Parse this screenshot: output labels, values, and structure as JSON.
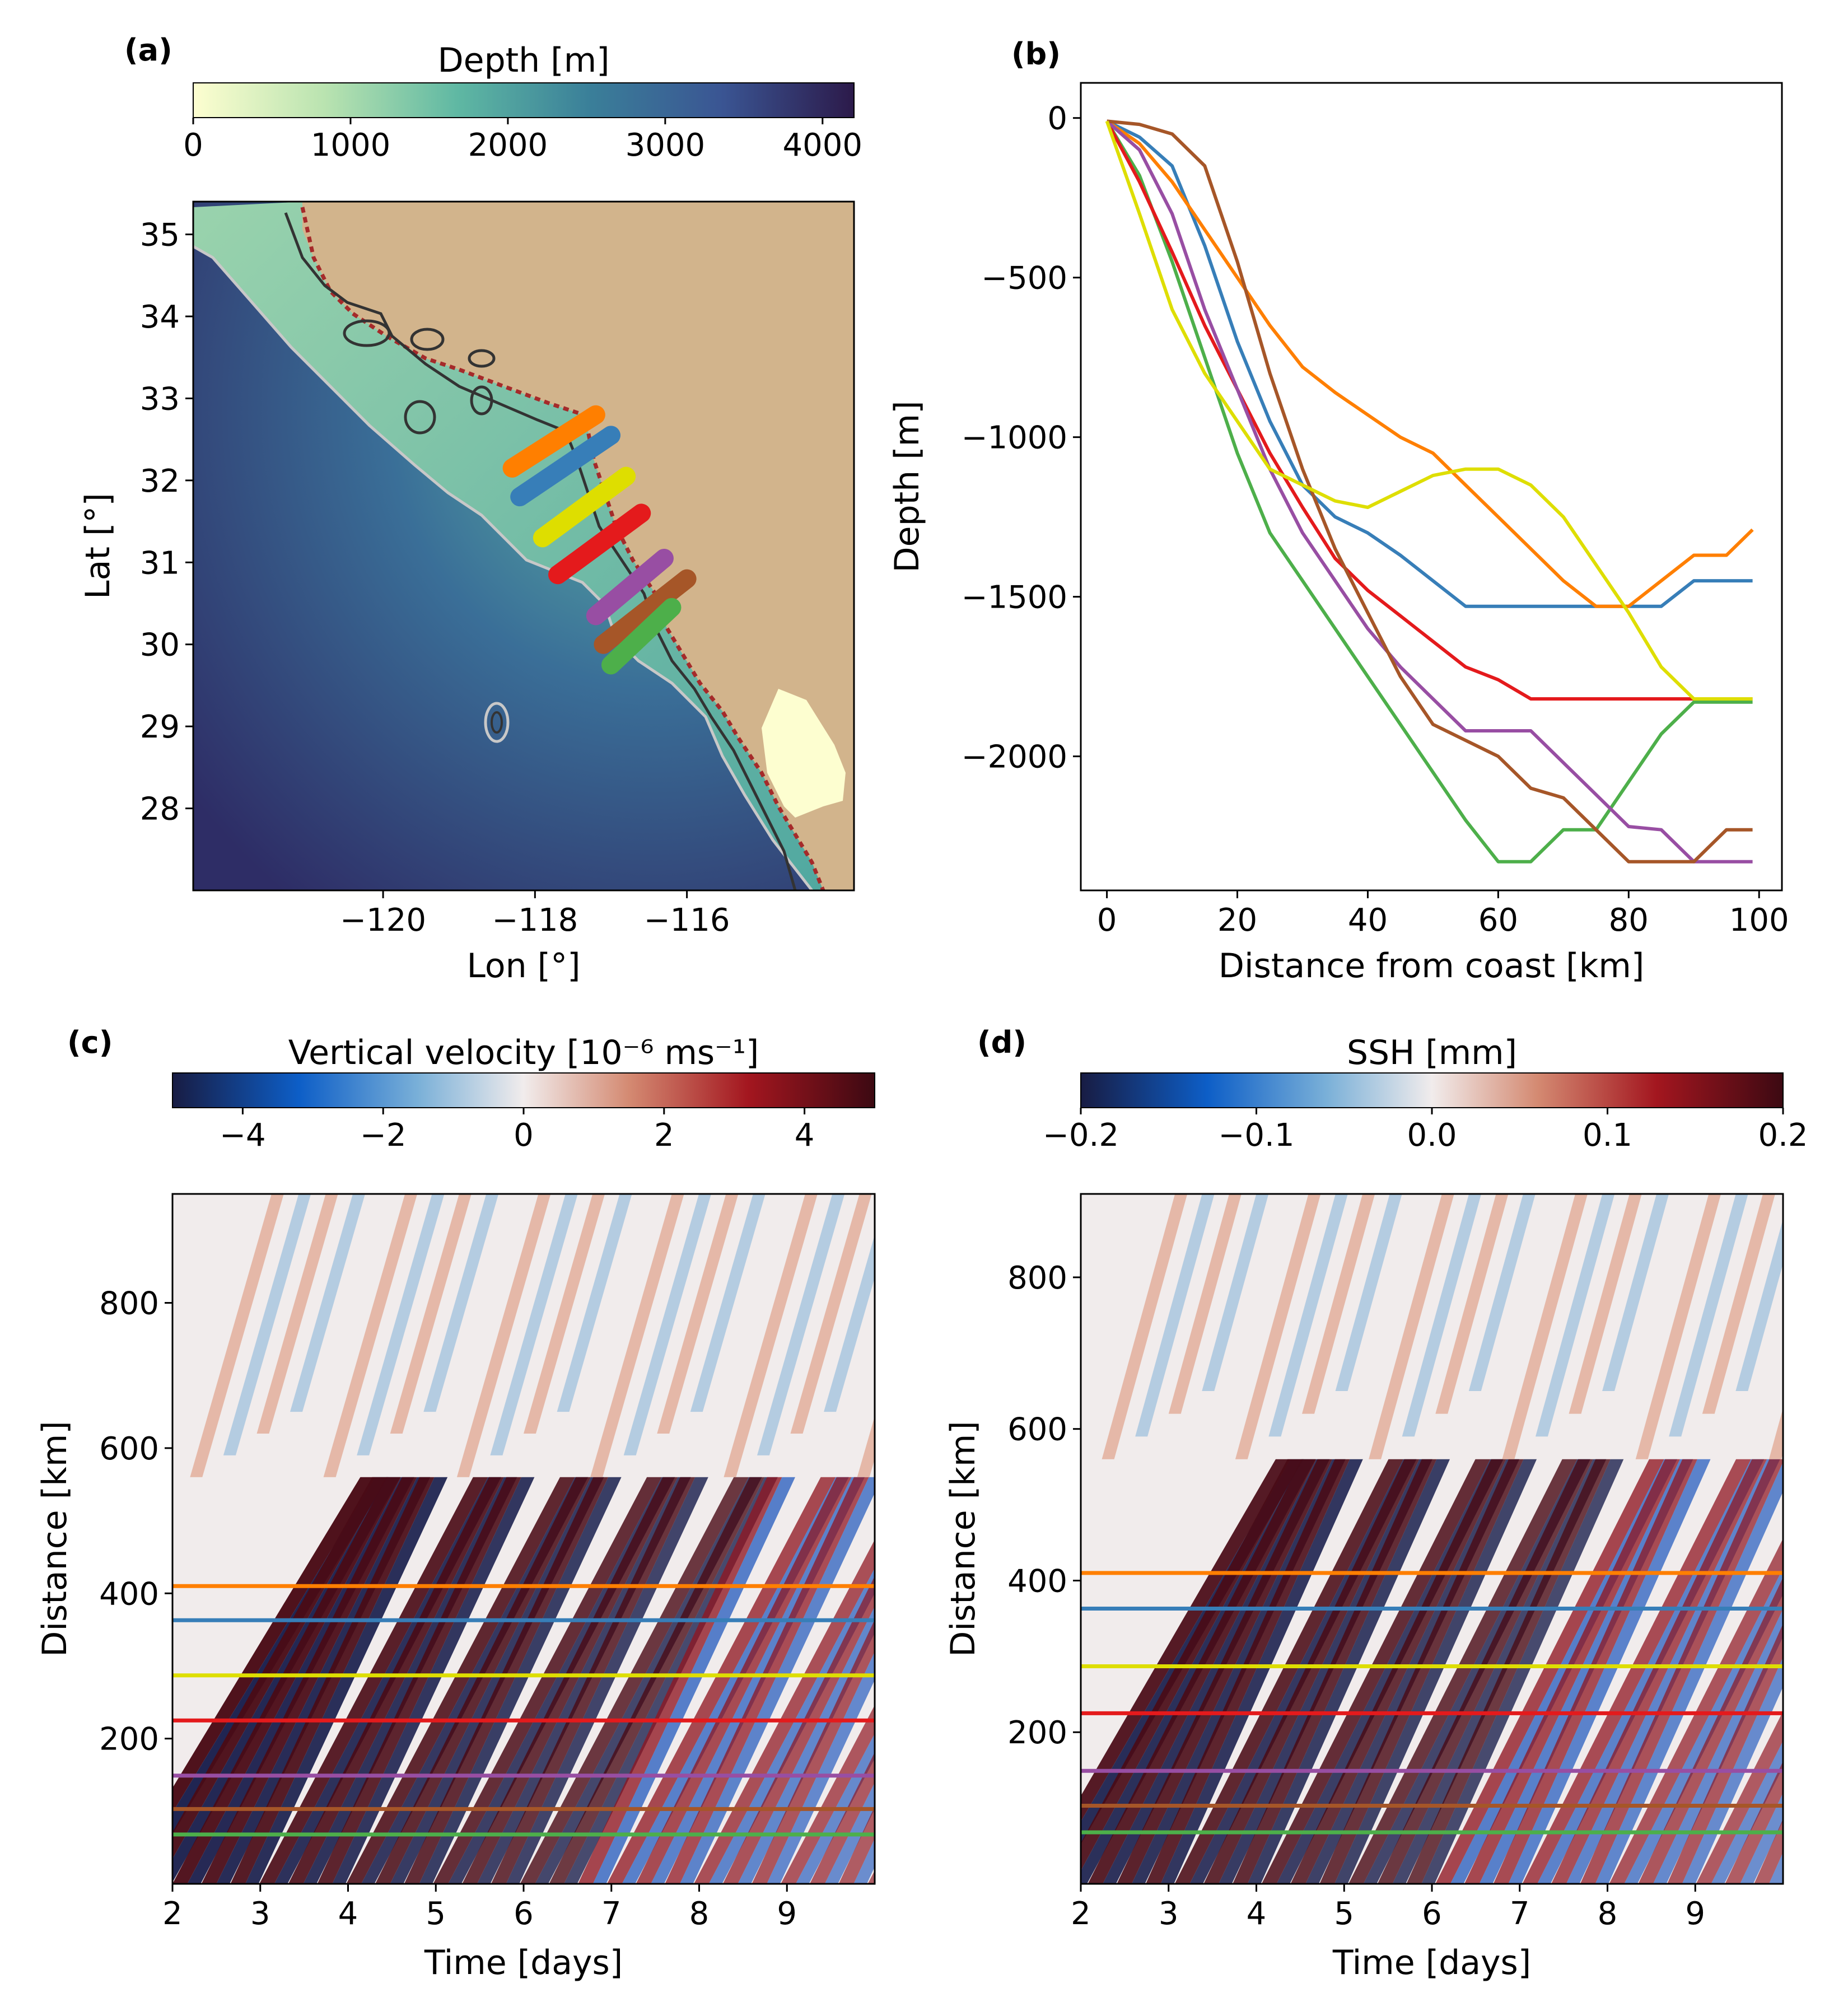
{
  "colors": {
    "blue": "#377eb8",
    "orange": "#ff7f00",
    "green": "#4daf4a",
    "red": "#e41a1c",
    "purple": "#984ea3",
    "brown": "#a65628",
    "yellow": "#dede00",
    "land": "#d2b48c",
    "shallow": "#ffffcc",
    "deep": "#2c1a4a"
  },
  "chart_data": [
    {
      "id": "a",
      "panel_label": "(a)",
      "type": "heatmap",
      "title": "",
      "colorbar": {
        "label": "Depth [m]",
        "range": [
          0,
          4200
        ],
        "ticks": [
          0,
          1000,
          2000,
          3000,
          4000
        ],
        "colormap": "deep"
      },
      "xlabel": "Lon [°]",
      "ylabel": "Lat [°]",
      "xlim": [
        -122.5,
        -113.8
      ],
      "ylim": [
        27.0,
        35.4
      ],
      "xticks": [
        -120,
        -118,
        -116
      ],
      "xtick_labels": [
        "−120",
        "−118",
        "−116"
      ],
      "yticks": [
        28,
        29,
        30,
        31,
        32,
        33,
        34,
        35
      ],
      "yticks_labels": [
        "28",
        "29",
        "30",
        "31",
        "32",
        "33",
        "34",
        "35"
      ],
      "transects": [
        {
          "color": "orange",
          "lon": [
            -118.3,
            -117.2
          ],
          "lat": [
            32.15,
            32.8
          ]
        },
        {
          "color": "blue",
          "lon": [
            -118.2,
            -117.0
          ],
          "lat": [
            31.8,
            32.55
          ]
        },
        {
          "color": "yellow",
          "lon": [
            -117.9,
            -116.8
          ],
          "lat": [
            31.3,
            32.05
          ]
        },
        {
          "color": "red",
          "lon": [
            -117.7,
            -116.6
          ],
          "lat": [
            30.85,
            31.6
          ]
        },
        {
          "color": "purple",
          "lon": [
            -117.2,
            -116.3
          ],
          "lat": [
            30.35,
            31.05
          ]
        },
        {
          "color": "brown",
          "lon": [
            -117.1,
            -116.0
          ],
          "lat": [
            30.0,
            30.8
          ]
        },
        {
          "color": "green",
          "lon": [
            -117.0,
            -116.2
          ],
          "lat": [
            29.75,
            30.45
          ]
        }
      ]
    },
    {
      "id": "b",
      "panel_label": "(b)",
      "type": "line",
      "title": "",
      "xlabel": "Distance from coast [km]",
      "ylabel": "Depth [m]",
      "xlim": [
        -4,
        103.5
      ],
      "ylim": [
        -2420,
        110
      ],
      "xticks": [
        0,
        20,
        40,
        60,
        80,
        100
      ],
      "xtick_labels": [
        "0",
        "20",
        "40",
        "60",
        "80",
        "100"
      ],
      "yticks": [
        0,
        -500,
        -1000,
        -1500,
        -2000
      ],
      "ytick_labels": [
        "0",
        "−500",
        "−1000",
        "−1500",
        "−2000"
      ],
      "series": [
        {
          "color": "blue",
          "x": [
            0,
            5,
            10,
            15,
            20,
            25,
            30,
            35,
            40,
            45,
            50,
            55,
            60,
            65,
            70,
            75,
            80,
            85,
            90,
            95,
            99
          ],
          "y": [
            -10,
            -60,
            -150,
            -400,
            -700,
            -950,
            -1150,
            -1250,
            -1300,
            -1370,
            -1450,
            -1530,
            -1530,
            -1530,
            -1530,
            -1530,
            -1530,
            -1530,
            -1450,
            -1450,
            -1450
          ]
        },
        {
          "color": "orange",
          "x": [
            0,
            5,
            10,
            15,
            20,
            25,
            30,
            35,
            40,
            45,
            50,
            55,
            60,
            65,
            70,
            75,
            80,
            85,
            90,
            95,
            99
          ],
          "y": [
            -10,
            -80,
            -200,
            -350,
            -500,
            -650,
            -780,
            -860,
            -930,
            -1000,
            -1050,
            -1150,
            -1250,
            -1350,
            -1450,
            -1530,
            -1530,
            -1450,
            -1370,
            -1370,
            -1290
          ]
        },
        {
          "color": "green",
          "x": [
            0,
            5,
            10,
            15,
            20,
            25,
            30,
            35,
            40,
            45,
            50,
            55,
            60,
            65,
            70,
            75,
            80,
            85,
            90,
            95,
            99
          ],
          "y": [
            -10,
            -180,
            -450,
            -750,
            -1050,
            -1300,
            -1450,
            -1600,
            -1750,
            -1900,
            -2050,
            -2200,
            -2330,
            -2330,
            -2230,
            -2230,
            -2080,
            -1930,
            -1830,
            -1830,
            -1830
          ]
        },
        {
          "color": "red",
          "x": [
            0,
            5,
            10,
            15,
            20,
            25,
            30,
            35,
            40,
            45,
            50,
            55,
            60,
            65,
            70,
            75,
            80,
            85,
            90,
            95,
            99
          ],
          "y": [
            -10,
            -200,
            -420,
            -650,
            -850,
            -1050,
            -1220,
            -1380,
            -1480,
            -1560,
            -1640,
            -1720,
            -1760,
            -1820,
            -1820,
            -1820,
            -1820,
            -1820,
            -1820,
            -1820,
            -1820
          ]
        },
        {
          "color": "purple",
          "x": [
            0,
            5,
            10,
            15,
            20,
            25,
            30,
            35,
            40,
            45,
            50,
            55,
            60,
            65,
            70,
            75,
            80,
            85,
            90,
            95,
            99
          ],
          "y": [
            -10,
            -100,
            -300,
            -600,
            -850,
            -1100,
            -1300,
            -1450,
            -1600,
            -1720,
            -1820,
            -1920,
            -1920,
            -1920,
            -2020,
            -2120,
            -2220,
            -2230,
            -2330,
            -2330,
            -2330
          ]
        },
        {
          "color": "brown",
          "x": [
            0,
            5,
            10,
            15,
            20,
            25,
            30,
            35,
            40,
            45,
            50,
            55,
            60,
            65,
            70,
            75,
            80,
            85,
            90,
            95,
            99
          ],
          "y": [
            -10,
            -20,
            -50,
            -150,
            -450,
            -800,
            -1100,
            -1350,
            -1550,
            -1750,
            -1900,
            -1950,
            -2000,
            -2100,
            -2130,
            -2230,
            -2330,
            -2330,
            -2330,
            -2230,
            -2230
          ]
        },
        {
          "color": "yellow",
          "x": [
            0,
            5,
            10,
            15,
            20,
            25,
            30,
            35,
            40,
            45,
            50,
            55,
            60,
            65,
            70,
            75,
            80,
            85,
            90,
            95,
            99
          ],
          "y": [
            -10,
            -300,
            -600,
            -800,
            -950,
            -1100,
            -1150,
            -1200,
            -1220,
            -1170,
            -1120,
            -1100,
            -1100,
            -1150,
            -1250,
            -1400,
            -1550,
            -1720,
            -1820,
            -1820,
            -1820
          ]
        }
      ]
    },
    {
      "id": "c",
      "panel_label": "(c)",
      "type": "heatmap",
      "title": "",
      "colorbar": {
        "label": "Vertical velocity [10⁻⁶ ms⁻¹]",
        "range": [
          -5,
          5
        ],
        "ticks": [
          -4,
          -2,
          0,
          2,
          4
        ],
        "tick_labels": [
          "−4",
          "−2",
          "0",
          "2",
          "4"
        ],
        "colormap": "balance"
      },
      "xlabel": "Time [days]",
      "ylabel": "Distance [km]",
      "xlim": [
        2,
        10
      ],
      "ylim": [
        0,
        950
      ],
      "xticks": [
        2,
        3,
        4,
        5,
        6,
        7,
        8,
        9
      ],
      "xtick_labels": [
        "2",
        "3",
        "4",
        "5",
        "6",
        "7",
        "8",
        "9"
      ],
      "yticks": [
        200,
        400,
        600,
        800
      ],
      "ytick_labels": [
        "200",
        "400",
        "600",
        "800"
      ],
      "transect_lines": [
        {
          "color": "orange",
          "distance": 410
        },
        {
          "color": "blue",
          "distance": 363
        },
        {
          "color": "yellow",
          "distance": 287
        },
        {
          "color": "red",
          "distance": 225
        },
        {
          "color": "purple",
          "distance": 149
        },
        {
          "color": "brown",
          "distance": 103
        },
        {
          "color": "green",
          "distance": 68
        }
      ]
    },
    {
      "id": "d",
      "panel_label": "(d)",
      "type": "heatmap",
      "title": "",
      "colorbar": {
        "label": "SSH [mm]",
        "range": [
          -0.2,
          0.2
        ],
        "ticks": [
          -0.2,
          -0.1,
          0.0,
          0.1,
          0.2
        ],
        "tick_labels": [
          "−0.2",
          "−0.1",
          "0.0",
          "0.1",
          "0.2"
        ],
        "colormap": "balance"
      },
      "xlabel": "Time [days]",
      "ylabel": "Distance [km]",
      "xlim": [
        2,
        10
      ],
      "ylim": [
        0,
        910
      ],
      "xticks": [
        2,
        3,
        4,
        5,
        6,
        7,
        8,
        9
      ],
      "xtick_labels": [
        "2",
        "3",
        "4",
        "5",
        "6",
        "7",
        "8",
        "9"
      ],
      "yticks": [
        200,
        400,
        600,
        800
      ],
      "ytick_labels": [
        "200",
        "400",
        "600",
        "800"
      ],
      "transect_lines": [
        {
          "color": "orange",
          "distance": 410
        },
        {
          "color": "blue",
          "distance": 363
        },
        {
          "color": "yellow",
          "distance": 287
        },
        {
          "color": "red",
          "distance": 225
        },
        {
          "color": "purple",
          "distance": 149
        },
        {
          "color": "brown",
          "distance": 103
        },
        {
          "color": "green",
          "distance": 68
        }
      ]
    }
  ]
}
